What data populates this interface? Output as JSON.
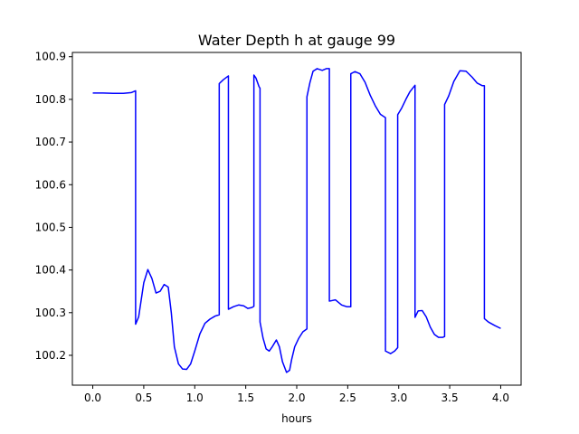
{
  "chart_data": {
    "type": "line",
    "title": "Water Depth h at gauge 99",
    "xlabel": "hours",
    "ylabel": "",
    "xlim": [
      -0.2,
      4.2
    ],
    "ylim": [
      100.13,
      100.91
    ],
    "xticks": [
      0.0,
      0.5,
      1.0,
      1.5,
      2.0,
      2.5,
      3.0,
      3.5,
      4.0
    ],
    "xtick_labels": [
      "0.0",
      "0.5",
      "1.0",
      "1.5",
      "2.0",
      "2.5",
      "3.0",
      "3.5",
      "4.0"
    ],
    "yticks": [
      100.2,
      100.3,
      100.4,
      100.5,
      100.6,
      100.7,
      100.8,
      100.9
    ],
    "ytick_labels": [
      "100.2",
      "100.3",
      "100.4",
      "100.5",
      "100.6",
      "100.7",
      "100.8",
      "100.9"
    ],
    "grid": false,
    "series": [
      {
        "color": "#0000ff",
        "x": [
          0.0,
          0.1,
          0.2,
          0.3,
          0.38,
          0.42,
          0.42,
          0.45,
          0.5,
          0.54,
          0.58,
          0.62,
          0.66,
          0.7,
          0.74,
          0.77,
          0.8,
          0.84,
          0.88,
          0.92,
          0.96,
          1.0,
          1.05,
          1.1,
          1.15,
          1.2,
          1.24,
          1.24,
          1.28,
          1.33,
          1.33,
          1.38,
          1.43,
          1.48,
          1.52,
          1.56,
          1.58,
          1.58,
          1.6,
          1.63,
          1.64,
          1.64,
          1.67,
          1.7,
          1.73,
          1.76,
          1.8,
          1.83,
          1.86,
          1.9,
          1.93,
          1.95,
          1.98,
          2.02,
          2.06,
          2.1,
          2.1,
          2.13,
          2.16,
          2.2,
          2.25,
          2.29,
          2.32,
          2.32,
          2.38,
          2.44,
          2.49,
          2.53,
          2.53,
          2.57,
          2.62,
          2.67,
          2.72,
          2.77,
          2.82,
          2.87,
          2.87,
          2.92,
          2.96,
          2.99,
          2.99,
          3.03,
          3.07,
          3.11,
          3.16,
          3.16,
          3.19,
          3.23,
          3.27,
          3.31,
          3.35,
          3.39,
          3.43,
          3.45,
          3.45,
          3.49,
          3.54,
          3.6,
          3.66,
          3.72,
          3.77,
          3.82,
          3.84,
          3.84,
          3.88,
          3.94,
          4.0
        ],
        "y": [
          100.815,
          100.815,
          100.814,
          100.814,
          100.816,
          100.82,
          100.273,
          100.29,
          100.37,
          100.401,
          100.38,
          100.346,
          100.35,
          100.366,
          100.36,
          100.3,
          100.22,
          100.18,
          100.168,
          100.167,
          100.18,
          100.21,
          100.25,
          100.275,
          100.285,
          100.292,
          100.295,
          100.837,
          100.846,
          100.855,
          100.308,
          100.314,
          100.318,
          100.316,
          100.31,
          100.312,
          100.315,
          100.857,
          100.85,
          100.83,
          100.826,
          100.278,
          100.24,
          100.215,
          100.21,
          100.22,
          100.236,
          100.22,
          100.185,
          100.16,
          100.165,
          100.19,
          100.22,
          100.24,
          100.255,
          100.262,
          100.806,
          100.84,
          100.866,
          100.872,
          100.868,
          100.872,
          100.872,
          100.327,
          100.33,
          100.318,
          100.314,
          100.314,
          100.86,
          100.865,
          100.86,
          100.84,
          100.81,
          100.785,
          100.765,
          100.757,
          100.21,
          100.204,
          100.21,
          100.218,
          100.764,
          100.78,
          100.8,
          100.818,
          100.833,
          100.289,
          100.304,
          100.305,
          100.29,
          100.266,
          100.249,
          100.242,
          100.242,
          100.244,
          100.788,
          100.808,
          100.842,
          100.867,
          100.866,
          100.852,
          100.838,
          100.832,
          100.832,
          100.286,
          100.278,
          100.27,
          100.263
        ]
      }
    ]
  }
}
